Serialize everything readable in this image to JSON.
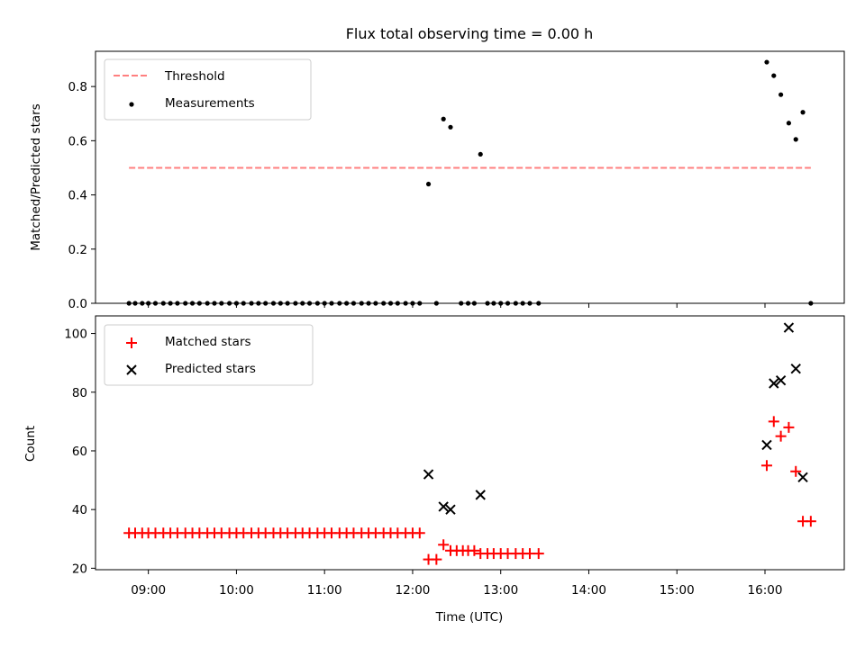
{
  "title": "Flux total observing time = 0.00 h",
  "chart_data": [
    {
      "type": "scatter",
      "panel": "top",
      "xlabel": "",
      "ylabel": "Matched/Predicted stars",
      "ylim": [
        0,
        0.93
      ],
      "yticks": [
        0.0,
        0.2,
        0.4,
        0.6,
        0.8
      ],
      "ytick_labels": [
        "0.0",
        "0.2",
        "0.4",
        "0.6",
        "0.8"
      ],
      "legend_position": "upper left",
      "threshold": {
        "name": "Threshold",
        "y": 0.5,
        "x_start": 8.78,
        "x_end": 16.52,
        "color": "#ff7f7f",
        "style": "dashed"
      },
      "series": [
        {
          "name": "Measurements",
          "color": "#000000",
          "marker": "dot",
          "points": [
            [
              8.78,
              0
            ],
            [
              8.85,
              0
            ],
            [
              8.93,
              0
            ],
            [
              9.0,
              0
            ],
            [
              9.08,
              0
            ],
            [
              9.17,
              0
            ],
            [
              9.25,
              0
            ],
            [
              9.33,
              0
            ],
            [
              9.42,
              0
            ],
            [
              9.5,
              0
            ],
            [
              9.58,
              0
            ],
            [
              9.67,
              0
            ],
            [
              9.75,
              0
            ],
            [
              9.83,
              0
            ],
            [
              9.92,
              0
            ],
            [
              10.0,
              0
            ],
            [
              10.08,
              0
            ],
            [
              10.17,
              0
            ],
            [
              10.25,
              0
            ],
            [
              10.33,
              0
            ],
            [
              10.42,
              0
            ],
            [
              10.5,
              0
            ],
            [
              10.58,
              0
            ],
            [
              10.67,
              0
            ],
            [
              10.75,
              0
            ],
            [
              10.83,
              0
            ],
            [
              10.92,
              0
            ],
            [
              11.0,
              0
            ],
            [
              11.08,
              0
            ],
            [
              11.17,
              0
            ],
            [
              11.25,
              0
            ],
            [
              11.33,
              0
            ],
            [
              11.42,
              0
            ],
            [
              11.5,
              0
            ],
            [
              11.58,
              0
            ],
            [
              11.67,
              0
            ],
            [
              11.75,
              0
            ],
            [
              11.83,
              0
            ],
            [
              11.92,
              0
            ],
            [
              12.0,
              0
            ],
            [
              12.08,
              0
            ],
            [
              12.18,
              0.44
            ],
            [
              12.27,
              0
            ],
            [
              12.35,
              0.68
            ],
            [
              12.43,
              0.65
            ],
            [
              12.55,
              0
            ],
            [
              12.63,
              0
            ],
            [
              12.7,
              0
            ],
            [
              12.77,
              0.55
            ],
            [
              12.85,
              0
            ],
            [
              12.92,
              0
            ],
            [
              13.0,
              0
            ],
            [
              13.08,
              0
            ],
            [
              13.17,
              0
            ],
            [
              13.25,
              0
            ],
            [
              13.33,
              0
            ],
            [
              13.43,
              0
            ],
            [
              16.02,
              0.89
            ],
            [
              16.1,
              0.84
            ],
            [
              16.18,
              0.77
            ],
            [
              16.27,
              0.665
            ],
            [
              16.35,
              0.605
            ],
            [
              16.43,
              0.705
            ],
            [
              16.52,
              0
            ]
          ]
        }
      ]
    },
    {
      "type": "scatter",
      "panel": "bottom",
      "xlabel": "Time (UTC)",
      "ylabel": "Count",
      "ylim": [
        19.5,
        106
      ],
      "yticks": [
        20,
        40,
        60,
        80,
        100
      ],
      "ytick_labels": [
        "20",
        "40",
        "60",
        "80",
        "100"
      ],
      "xlim": [
        8.4,
        16.9
      ],
      "xticks": [
        9,
        10,
        11,
        12,
        13,
        14,
        15,
        16
      ],
      "xtick_labels": [
        "09:00",
        "10:00",
        "11:00",
        "12:00",
        "13:00",
        "14:00",
        "15:00",
        "16:00"
      ],
      "legend_position": "upper left",
      "series": [
        {
          "name": "Matched stars",
          "color": "#ff0000",
          "marker": "plus",
          "points": [
            [
              8.78,
              32
            ],
            [
              8.85,
              32
            ],
            [
              8.93,
              32
            ],
            [
              9.0,
              32
            ],
            [
              9.08,
              32
            ],
            [
              9.17,
              32
            ],
            [
              9.25,
              32
            ],
            [
              9.33,
              32
            ],
            [
              9.42,
              32
            ],
            [
              9.5,
              32
            ],
            [
              9.58,
              32
            ],
            [
              9.67,
              32
            ],
            [
              9.75,
              32
            ],
            [
              9.83,
              32
            ],
            [
              9.92,
              32
            ],
            [
              10.0,
              32
            ],
            [
              10.08,
              32
            ],
            [
              10.17,
              32
            ],
            [
              10.25,
              32
            ],
            [
              10.33,
              32
            ],
            [
              10.42,
              32
            ],
            [
              10.5,
              32
            ],
            [
              10.58,
              32
            ],
            [
              10.67,
              32
            ],
            [
              10.75,
              32
            ],
            [
              10.83,
              32
            ],
            [
              10.92,
              32
            ],
            [
              11.0,
              32
            ],
            [
              11.08,
              32
            ],
            [
              11.17,
              32
            ],
            [
              11.25,
              32
            ],
            [
              11.33,
              32
            ],
            [
              11.42,
              32
            ],
            [
              11.5,
              32
            ],
            [
              11.58,
              32
            ],
            [
              11.67,
              32
            ],
            [
              11.75,
              32
            ],
            [
              11.83,
              32
            ],
            [
              11.92,
              32
            ],
            [
              12.0,
              32
            ],
            [
              12.08,
              32
            ],
            [
              12.18,
              23
            ],
            [
              12.27,
              23
            ],
            [
              12.35,
              28
            ],
            [
              12.43,
              26
            ],
            [
              12.5,
              26
            ],
            [
              12.57,
              26
            ],
            [
              12.63,
              26
            ],
            [
              12.7,
              26
            ],
            [
              12.77,
              25
            ],
            [
              12.85,
              25
            ],
            [
              12.92,
              25
            ],
            [
              13.0,
              25
            ],
            [
              13.08,
              25
            ],
            [
              13.17,
              25
            ],
            [
              13.25,
              25
            ],
            [
              13.33,
              25
            ],
            [
              13.43,
              25
            ],
            [
              16.02,
              55
            ],
            [
              16.1,
              70
            ],
            [
              16.18,
              65
            ],
            [
              16.27,
              68
            ],
            [
              16.35,
              53
            ],
            [
              16.43,
              36
            ],
            [
              16.52,
              36
            ]
          ]
        },
        {
          "name": "Predicted stars",
          "color": "#000000",
          "marker": "x",
          "points": [
            [
              12.18,
              52
            ],
            [
              12.35,
              41
            ],
            [
              12.43,
              40
            ],
            [
              12.77,
              45
            ],
            [
              16.02,
              62
            ],
            [
              16.1,
              83
            ],
            [
              16.18,
              84
            ],
            [
              16.27,
              102
            ],
            [
              16.35,
              88
            ],
            [
              16.43,
              51
            ]
          ]
        }
      ]
    }
  ]
}
